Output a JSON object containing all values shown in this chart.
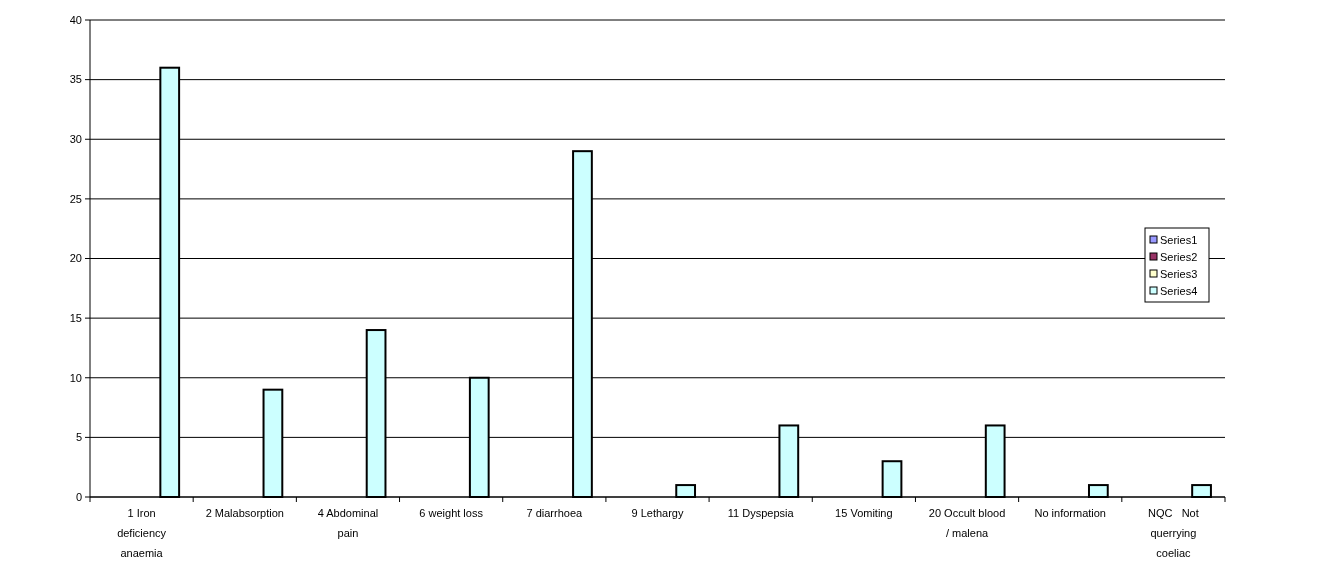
{
  "chart_data": {
    "type": "bar",
    "categories": [
      "1 Iron deficiency anaemia",
      "2 Malabsorption",
      "4 Abdominal pain",
      "6 weight loss",
      "7 diarrhoea",
      "9 Lethargy",
      "11 Dyspepsia",
      "15 Vomiting",
      "20 Occult blood / malena",
      "No information",
      "NQC   Not querrying coeliac"
    ],
    "series": [
      {
        "name": "Series1",
        "color": "#9999ff",
        "values": [
          null,
          null,
          null,
          null,
          null,
          null,
          null,
          null,
          null,
          null,
          null
        ]
      },
      {
        "name": "Series2",
        "color": "#993366",
        "values": [
          null,
          null,
          null,
          null,
          null,
          null,
          null,
          null,
          null,
          null,
          null
        ]
      },
      {
        "name": "Series3",
        "color": "#ffffcc",
        "values": [
          null,
          null,
          null,
          null,
          null,
          null,
          null,
          null,
          null,
          null,
          null
        ]
      },
      {
        "name": "Series4",
        "color": "#ccffff",
        "values": [
          36,
          9,
          14,
          10,
          29,
          1,
          6,
          3,
          6,
          1,
          1
        ]
      }
    ],
    "ylim": [
      0,
      40
    ],
    "yticks": [
      0,
      5,
      10,
      15,
      20,
      25,
      30,
      35,
      40
    ],
    "grid": "y",
    "legend": "right"
  }
}
